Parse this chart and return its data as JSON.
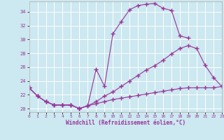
{
  "xlabel": "Windchill (Refroidissement éolien,°C)",
  "bg_color": "#cce8f0",
  "line_color": "#993399",
  "grid_color": "#ffffff",
  "xlim": [
    0,
    23
  ],
  "ylim": [
    19.5,
    35.5
  ],
  "yticks": [
    20,
    22,
    24,
    26,
    28,
    30,
    32,
    34
  ],
  "xticks": [
    0,
    1,
    2,
    3,
    4,
    5,
    6,
    7,
    8,
    9,
    10,
    11,
    12,
    13,
    14,
    15,
    16,
    17,
    18,
    19,
    20,
    21,
    22,
    23
  ],
  "line1_x": [
    0,
    1,
    2,
    3,
    4,
    5,
    6,
    7,
    8,
    9,
    10,
    11,
    12,
    13,
    14,
    15,
    16,
    17,
    18,
    19
  ],
  "line1_y": [
    23.0,
    21.8,
    21.0,
    20.5,
    20.5,
    20.5,
    20.0,
    20.4,
    25.7,
    23.2,
    30.8,
    32.6,
    34.3,
    34.9,
    35.1,
    35.2,
    34.5,
    34.2,
    30.5,
    30.2
  ],
  "line2_x": [
    0,
    1,
    2,
    3,
    4,
    5,
    6,
    7,
    8,
    9,
    10,
    11,
    12,
    13,
    14,
    15,
    16,
    17,
    18,
    19,
    20,
    21,
    22,
    23
  ],
  "line2_y": [
    23.0,
    21.8,
    21.0,
    20.5,
    20.5,
    20.5,
    20.0,
    20.4,
    21.0,
    21.8,
    22.4,
    23.2,
    24.0,
    24.8,
    25.6,
    26.2,
    27.0,
    27.9,
    28.7,
    29.1,
    28.7,
    26.3,
    24.5,
    23.2
  ],
  "line3_x": [
    0,
    1,
    2,
    3,
    4,
    5,
    6,
    7,
    8,
    9,
    10,
    11,
    12,
    13,
    14,
    15,
    16,
    17,
    18,
    19,
    20,
    21,
    22,
    23
  ],
  "line3_y": [
    23.0,
    21.8,
    21.0,
    20.5,
    20.5,
    20.5,
    20.0,
    20.4,
    20.7,
    21.0,
    21.3,
    21.5,
    21.7,
    21.9,
    22.1,
    22.3,
    22.5,
    22.7,
    22.9,
    23.0,
    23.0,
    23.0,
    23.0,
    23.2
  ]
}
